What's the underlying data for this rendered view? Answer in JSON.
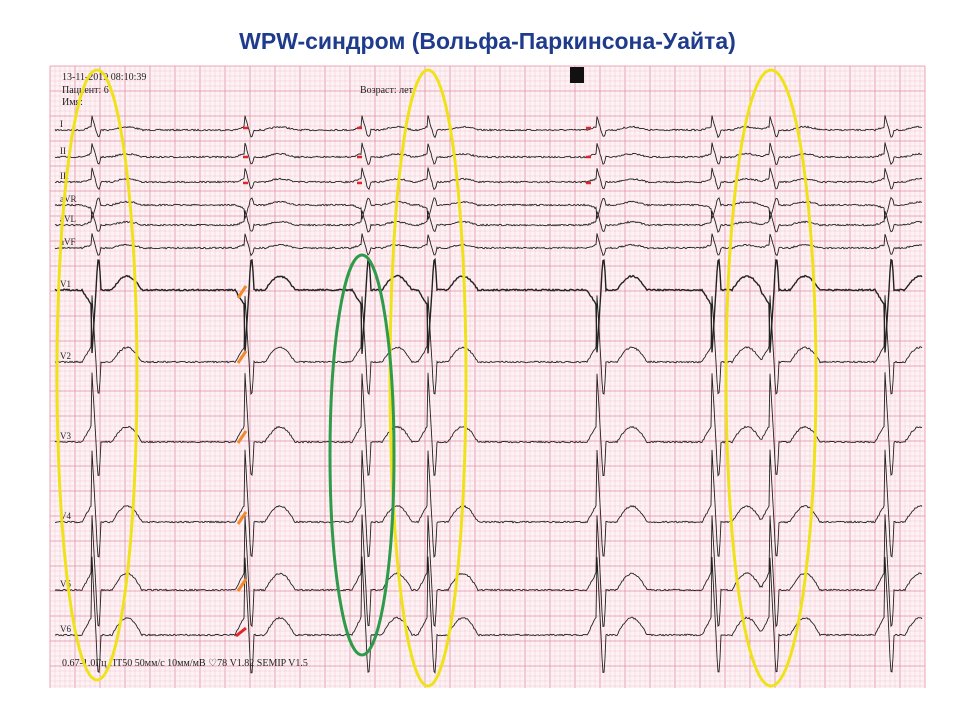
{
  "title": "WPW-синдром (Вольфа-Паркинсона-Уайта)",
  "ecg": {
    "header": {
      "datetime": "13-11-2019   08:10:39",
      "patient": "Пациент: 6",
      "age": "Возраст:    лет",
      "name": "Имя:"
    },
    "leads": [
      "I",
      "II",
      "III",
      "aVR",
      "aVL",
      "aVF",
      "V1",
      "V2",
      "V3",
      "V4",
      "V5",
      "V6"
    ],
    "footer": "0.67-1.0Гц  ПТ50  50мм/с  10мм/мВ  ♡78     V1.82   SEMIP  V1.5"
  }
}
